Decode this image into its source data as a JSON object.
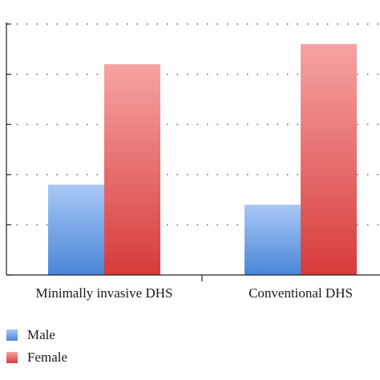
{
  "chart_data": {
    "type": "bar",
    "title": "",
    "xlabel": "",
    "ylabel": "",
    "categories": [
      "Minimally invasive DHS",
      "Conventional DHS"
    ],
    "series": [
      {
        "name": "Male",
        "values": [
          36,
          28
        ],
        "color_top": "#a9c8f5",
        "color_bottom": "#4a86d8"
      },
      {
        "name": "Female",
        "values": [
          84,
          92
        ],
        "color_top": "#f7a3a3",
        "color_bottom": "#d63b3b"
      }
    ],
    "ylim": [
      0,
      100
    ],
    "yticks": [
      0,
      20,
      40,
      60,
      80,
      100
    ],
    "grid": true,
    "legend_position": "bottom-left"
  }
}
